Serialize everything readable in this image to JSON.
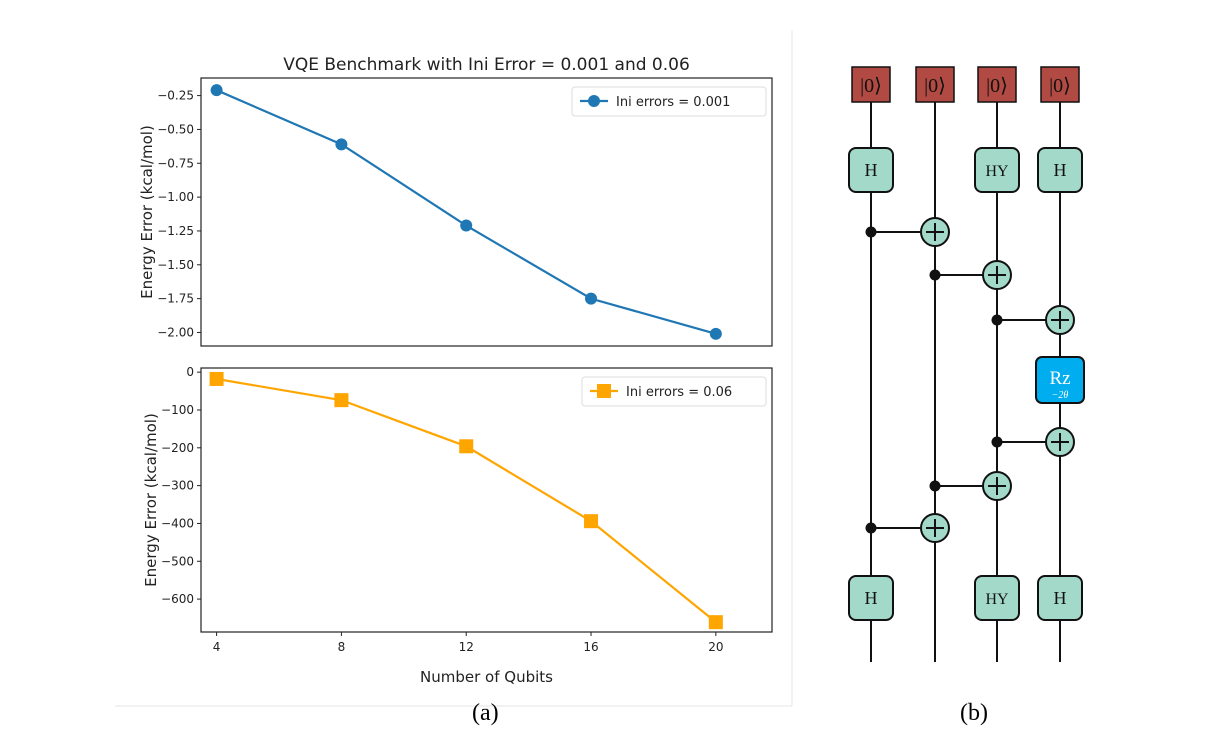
{
  "figure": {
    "caption_a": "(a)",
    "caption_b": "(b)"
  },
  "chart_data": [
    {
      "type": "line",
      "title": "VQE Benchmark with Ini Error = 0.001 and 0.06",
      "xlabel": "",
      "ylabel": "Energy Error (kcal/mol)",
      "x": [
        4,
        8,
        12,
        16,
        20
      ],
      "xlim": [
        3.5,
        21.8
      ],
      "ylim": [
        -2.1,
        -0.12
      ],
      "yticks": [
        -0.25,
        -0.5,
        -0.75,
        -1.0,
        -1.25,
        -1.5,
        -1.75,
        -2.0
      ],
      "ytick_labels": [
        "−0.25",
        "−0.50",
        "−0.75",
        "−1.00",
        "−1.25",
        "−1.50",
        "−1.75",
        "−2.00"
      ],
      "grid": false,
      "legend_position": "top-right",
      "series": [
        {
          "name": "Ini errors = 0.001",
          "values": [
            -0.21,
            -0.61,
            -1.21,
            -1.75,
            -2.01
          ],
          "color": "#1f77b4",
          "marker": "circle"
        }
      ]
    },
    {
      "type": "line",
      "title": "",
      "xlabel": "Number of Qubits",
      "ylabel": "Energy Error (kcal/mol)",
      "x": [
        4,
        8,
        12,
        16,
        20
      ],
      "xlim": [
        3.5,
        21.8
      ],
      "xticks": [
        4,
        8,
        12,
        16,
        20
      ],
      "xtick_labels": [
        "4",
        "8",
        "12",
        "16",
        "20"
      ],
      "ylim": [
        -687,
        11
      ],
      "yticks": [
        0,
        -100,
        -200,
        -300,
        -400,
        -500,
        -600
      ],
      "ytick_labels": [
        "0",
        "−100",
        "−200",
        "−300",
        "−400",
        "−500",
        "−600"
      ],
      "grid": false,
      "legend_position": "top-right",
      "series": [
        {
          "name": "Ini errors = 0.06",
          "values": [
            -18,
            -74,
            -196,
            -394,
            -661
          ],
          "color": "#ffa500",
          "marker": "square"
        }
      ]
    }
  ],
  "circuit": {
    "init_label": "|0⟩",
    "init_color": "#b04a42",
    "gate_color": "#a3d9c9",
    "rz_color": "#00aeef",
    "qubits": 4,
    "top_gates": [
      "H",
      "",
      "HY",
      "H"
    ],
    "bottom_gates": [
      "H",
      "",
      "HY",
      "H"
    ],
    "cnots": [
      [
        0,
        1
      ],
      [
        1,
        2
      ],
      [
        2,
        3
      ],
      "RZ",
      [
        2,
        3
      ],
      [
        1,
        2
      ],
      [
        0,
        1
      ]
    ],
    "rz_label": "Rz",
    "rz_param": "−2θ"
  }
}
